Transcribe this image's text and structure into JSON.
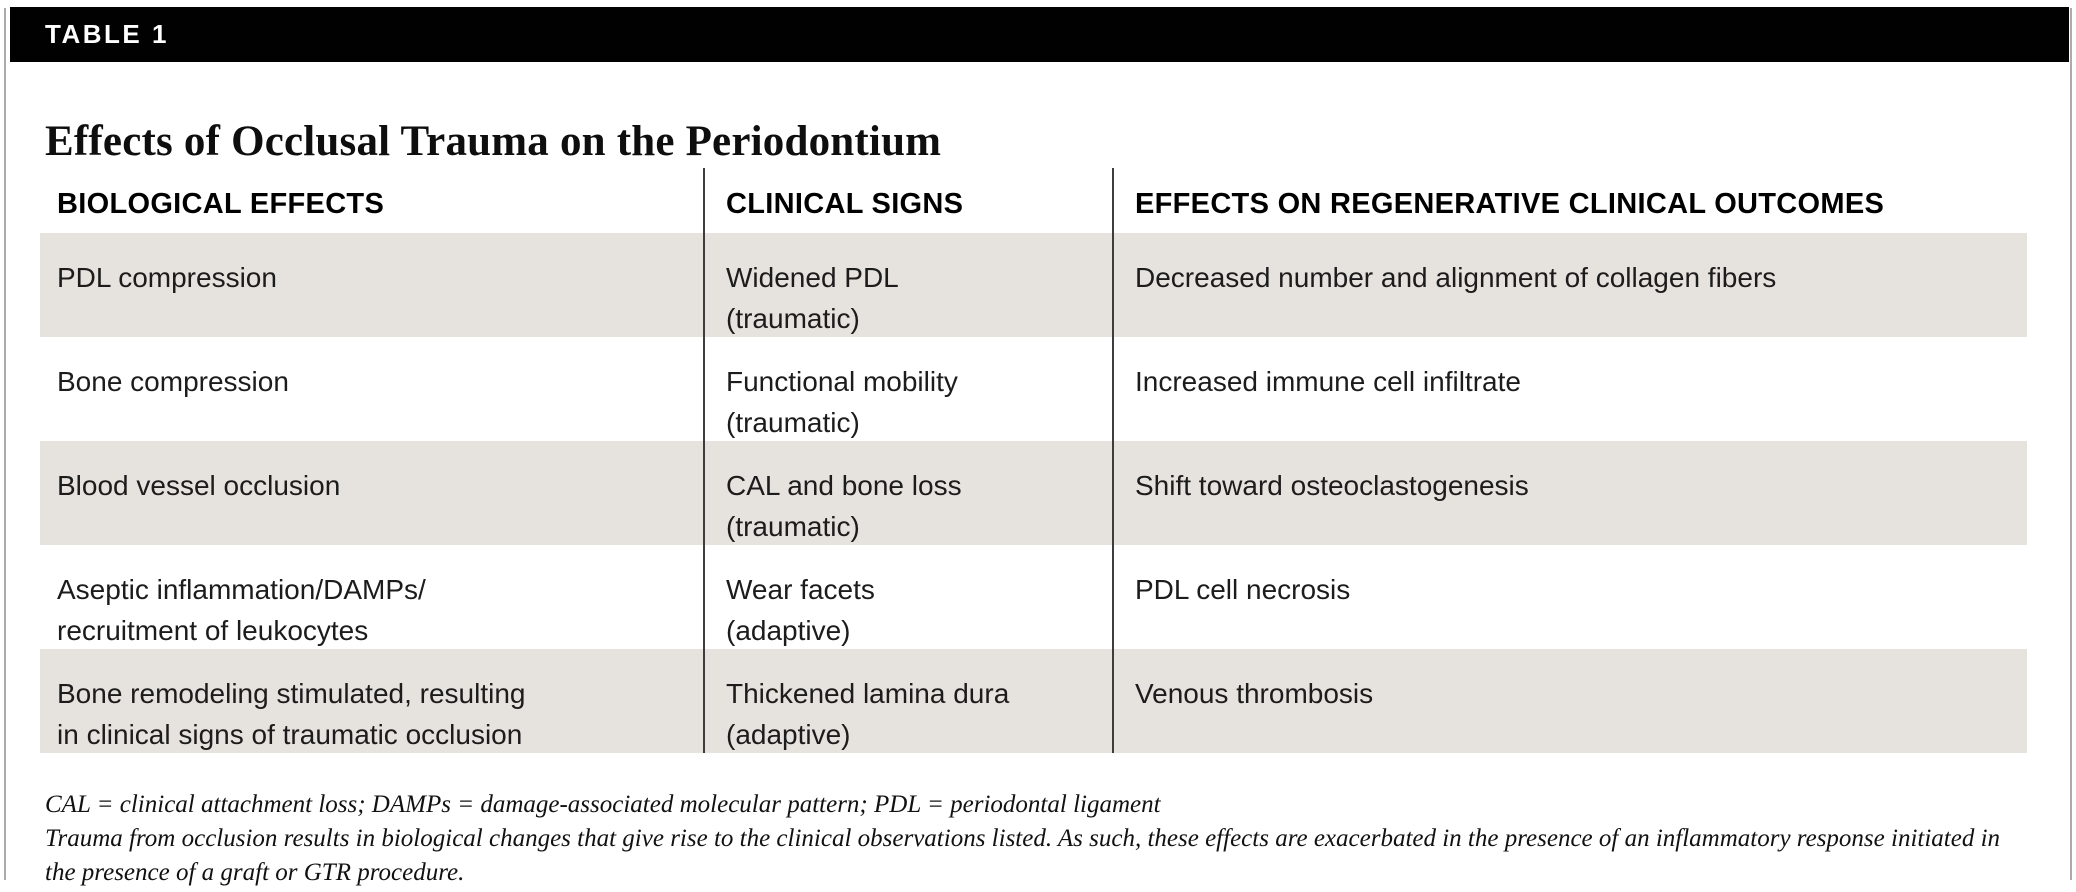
{
  "banner": {
    "tag": "TABLE 1"
  },
  "title": "Effects of Occlusal Trauma on the Periodontium",
  "table": {
    "columns": [
      "BIOLOGICAL EFFECTS",
      "CLINICAL SIGNS",
      "EFFECTS ON REGENERATIVE CLINICAL OUTCOMES"
    ],
    "rows": [
      [
        "PDL compression",
        "Widened PDL\n(traumatic)",
        "Decreased number and alignment of collagen fibers"
      ],
      [
        "Bone compression",
        "Functional mobility\n(traumatic)",
        "Increased immune cell infiltrate"
      ],
      [
        "Blood vessel occlusion",
        "CAL and bone loss\n(traumatic)",
        "Shift toward osteoclastogenesis"
      ],
      [
        "Aseptic inflammation/DAMPs/\nrecruitment of leukocytes",
        "Wear facets\n(adaptive)",
        "PDL cell necrosis"
      ],
      [
        "Bone remodeling stimulated, resulting\nin clinical signs of traumatic occlusion",
        "Thickened lamina dura\n(adaptive)",
        "Venous thrombosis"
      ]
    ]
  },
  "footnotes": {
    "abbreviations": "CAL = clinical attachment loss; DAMPs = damage-associated molecular pattern; PDL = periodontal ligament",
    "note": "Trauma from occlusion results in biological changes that give rise to the clinical observations listed. As such, these effects are exacerbated in the presence of an inflammatory response initiated in the presence of a graft or GTR procedure."
  },
  "colors": {
    "banner_bg": "#010101",
    "row_shade": "#e6e2dd",
    "divider": "#3d3d3d",
    "side_border": "#ababab"
  }
}
